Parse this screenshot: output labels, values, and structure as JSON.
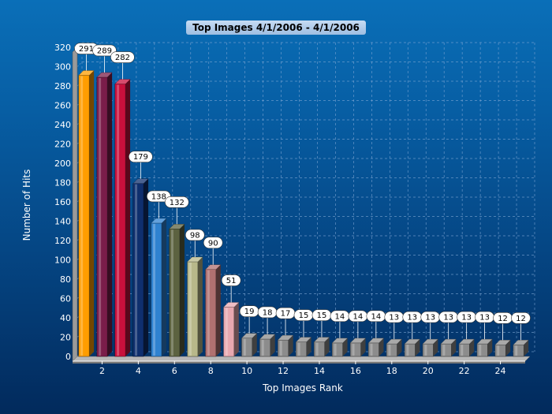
{
  "chart_data": {
    "type": "bar",
    "title": "Top Images 4/1/2006 - 4/1/2006",
    "xlabel": "Top Images Rank",
    "ylabel": "Number of Hits",
    "ylim": [
      0,
      320
    ],
    "ytick_step": 20,
    "xticks": [
      2,
      4,
      6,
      8,
      10,
      12,
      14,
      16,
      18,
      20,
      22,
      24
    ],
    "categories": [
      1,
      2,
      3,
      4,
      5,
      6,
      7,
      8,
      9,
      10,
      11,
      12,
      13,
      14,
      15,
      16,
      17,
      18,
      19,
      20,
      21,
      22,
      23,
      24,
      25
    ],
    "values": [
      291,
      289,
      282,
      179,
      138,
      132,
      98,
      90,
      51,
      19,
      18,
      17,
      15,
      15,
      14,
      14,
      14,
      13,
      13,
      13,
      13,
      13,
      13,
      12,
      12
    ],
    "grid": true,
    "legend": "none",
    "colors": [
      "#ff9d00",
      "#7a1d4a",
      "#c8103c",
      "#0f2f6e",
      "#2f82d0",
      "#5c6240",
      "#b8b88a",
      "#b07070",
      "#e8a8b0",
      "#8c8c8c",
      "#8c8c8c",
      "#8c8c8c",
      "#8c8c8c",
      "#8c8c8c",
      "#8c8c8c",
      "#8c8c8c",
      "#8c8c8c",
      "#8c8c8c",
      "#8c8c8c",
      "#8c8c8c",
      "#8c8c8c",
      "#8c8c8c",
      "#8c8c8c",
      "#8c8c8c",
      "#8c8c8c"
    ]
  }
}
